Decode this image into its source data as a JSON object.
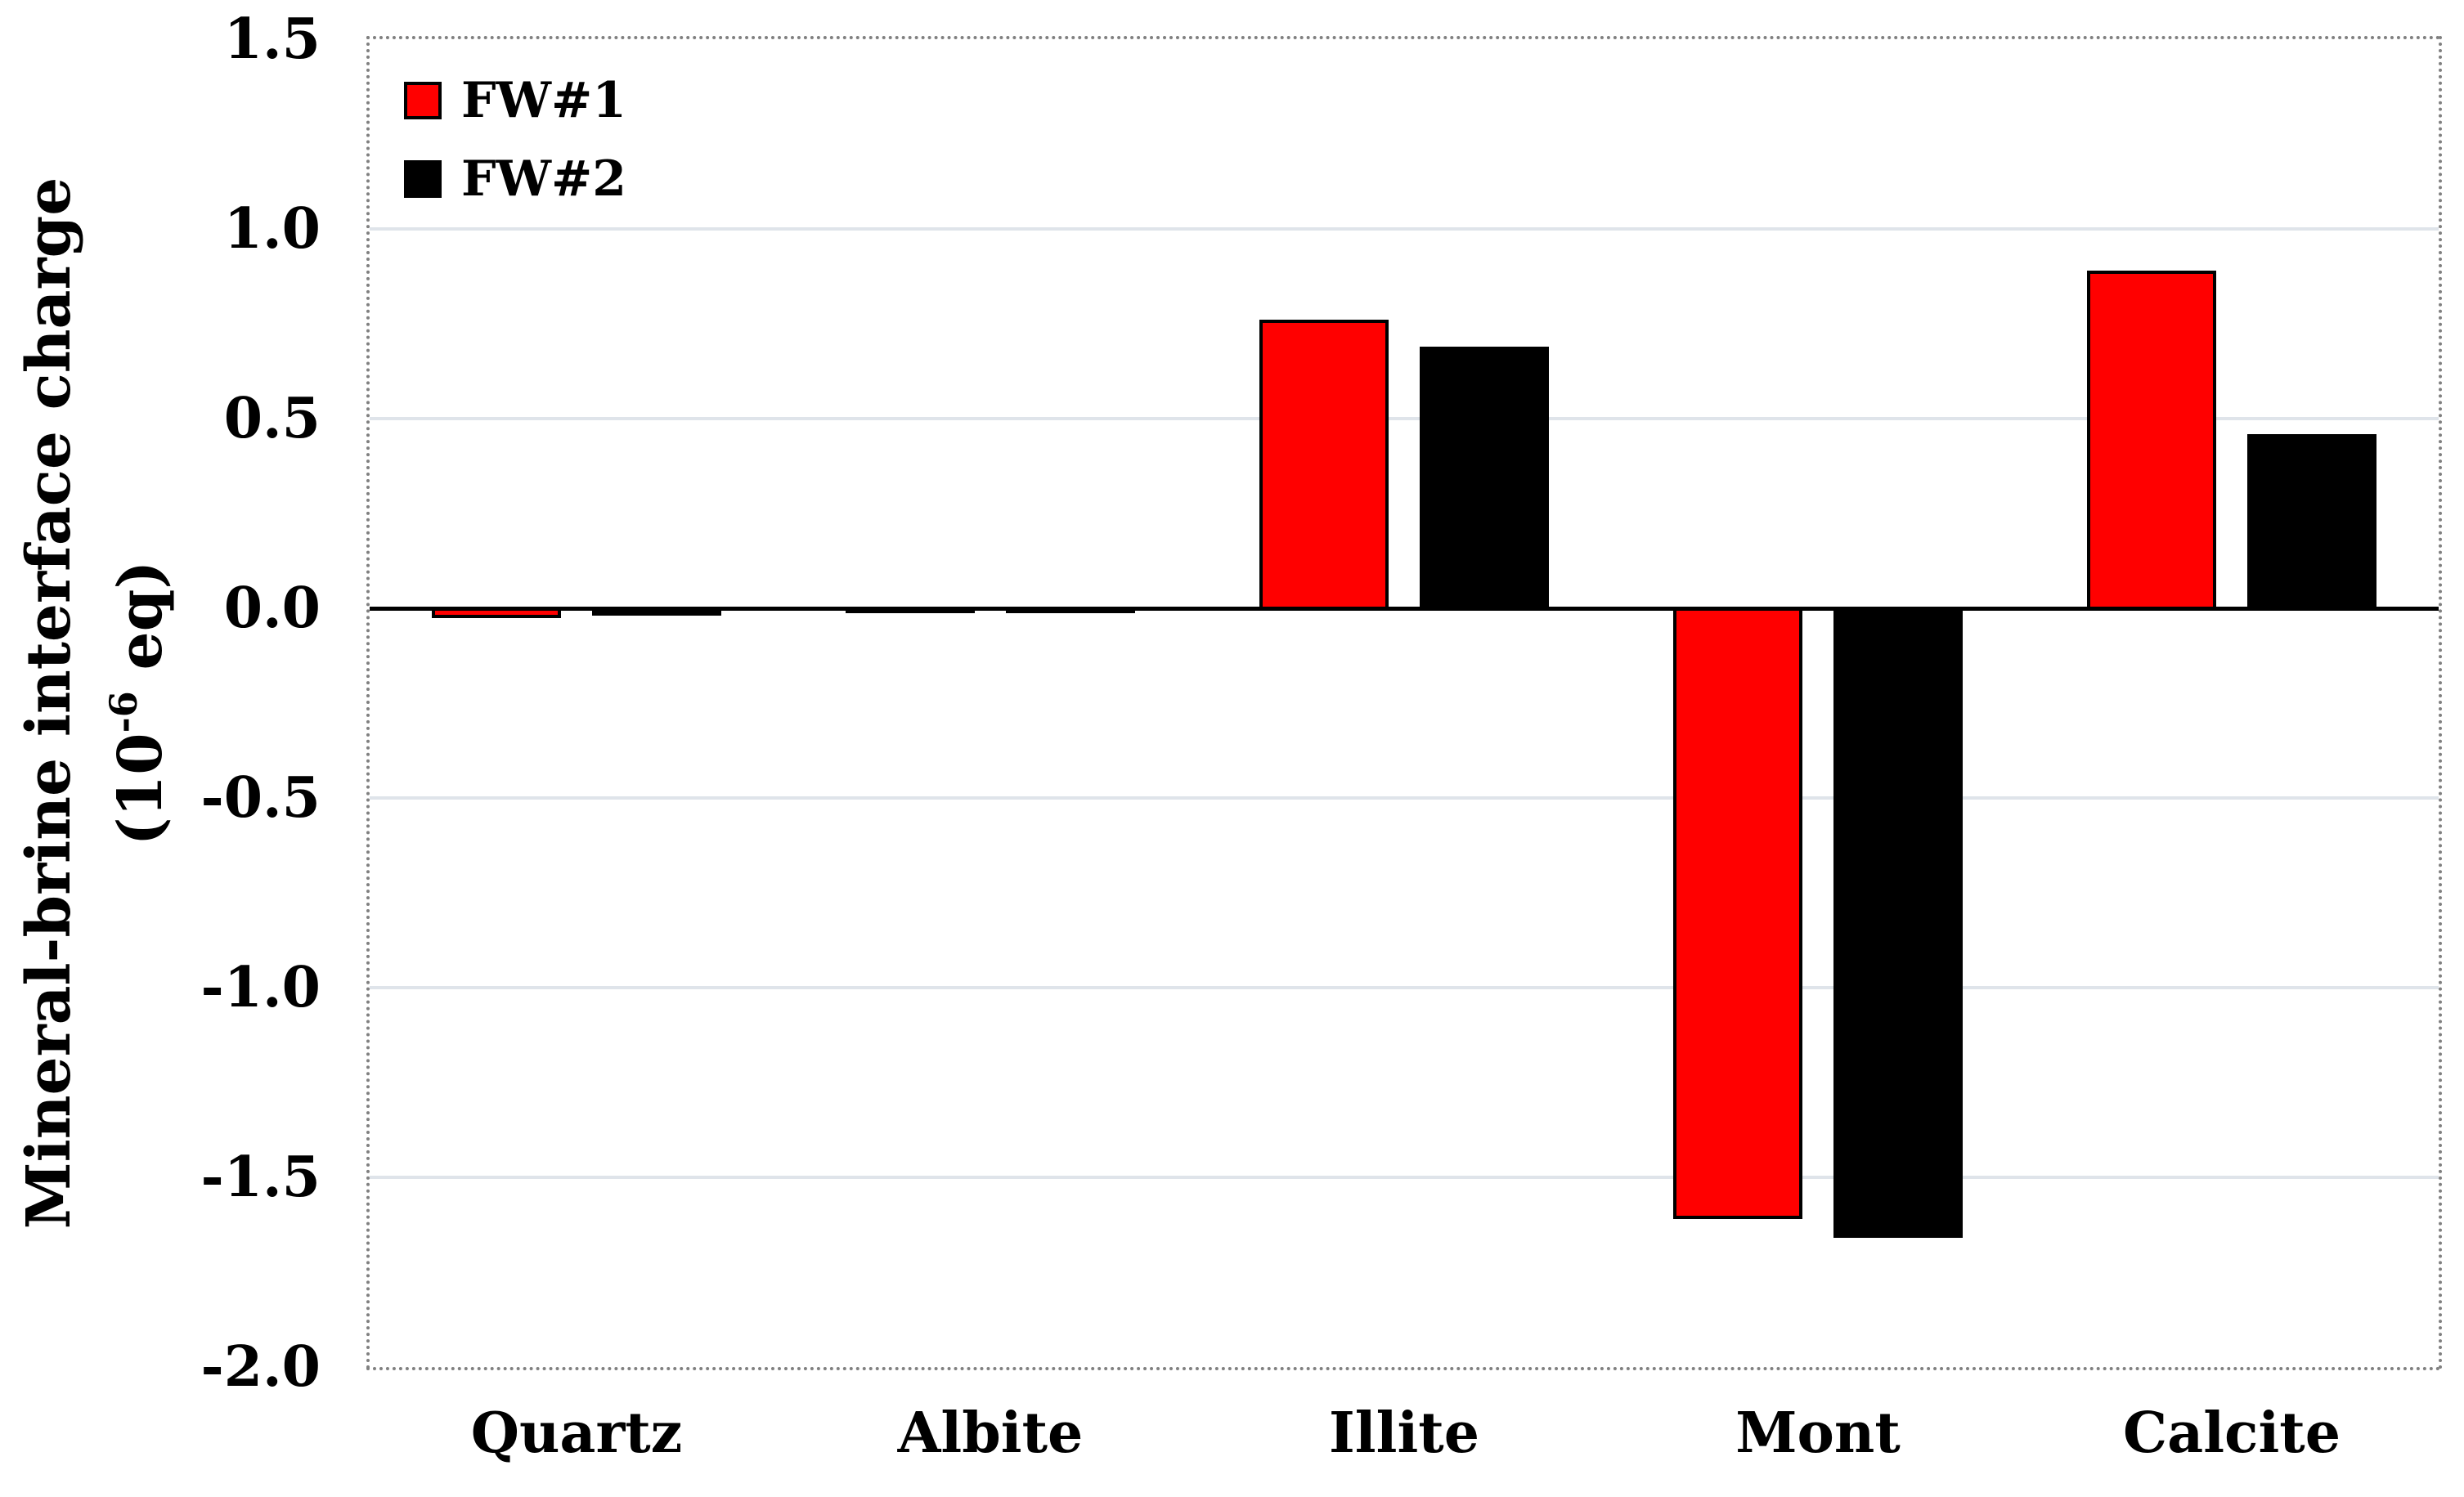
{
  "chart_data": {
    "type": "bar",
    "title": "",
    "ylabel_line1": "Mineral-brine interface charge",
    "unit_prefix": "(10",
    "unit_exponent": "-6",
    "unit_suffix": " eq)",
    "categories": [
      "Quartz",
      "Albite",
      "Illite",
      "Mont",
      "Calcite"
    ],
    "series": [
      {
        "name": "FW#1",
        "color": "#ff0000",
        "outline": "#000000",
        "values": [
          -0.025,
          -0.013,
          0.76,
          -1.61,
          0.89
        ]
      },
      {
        "name": "FW#2",
        "color": "#000000",
        "outline": "#000000",
        "values": [
          -0.02,
          -0.013,
          0.69,
          -1.66,
          0.46
        ]
      }
    ],
    "ylim": [
      -2.0,
      1.5
    ],
    "yticks": [
      {
        "label": "1.5",
        "value": 1.5
      },
      {
        "label": "1.0",
        "value": 1.0
      },
      {
        "label": "0.5",
        "value": 0.5
      },
      {
        "label": "0.0",
        "value": 0.0
      },
      {
        "label": "-0.5",
        "value": -0.5
      },
      {
        "label": "-1.0",
        "value": -1.0
      },
      {
        "label": "-1.5",
        "value": -1.5
      },
      {
        "label": "-2.0",
        "value": -2.0
      }
    ],
    "gridline_values": [
      1.0,
      0.5,
      -0.5,
      -1.0,
      -1.5
    ],
    "grid_color": "#dfe4ea",
    "frame_color": "#808080",
    "zero_line_color": "#000000",
    "legend_position": "top-left",
    "grid": "on"
  }
}
